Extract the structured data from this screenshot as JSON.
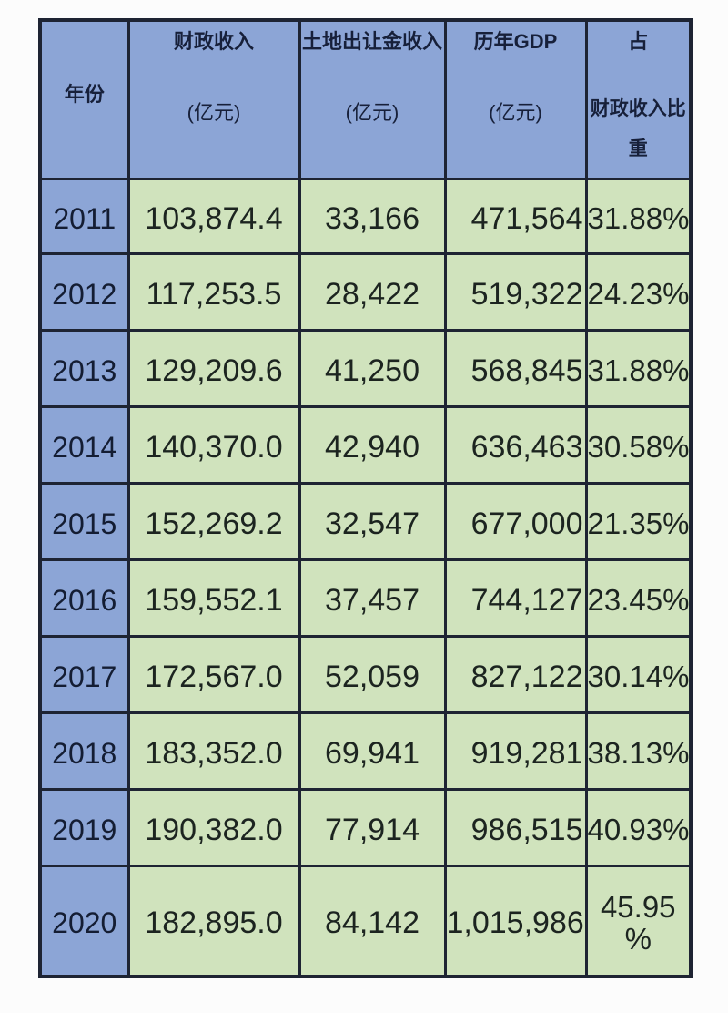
{
  "page": {
    "background": "#fcfcfc"
  },
  "colors": {
    "header_blue": "#8ca5d6",
    "cell_green": "#d0e3bd",
    "border_dark": "#1e2433"
  },
  "table": {
    "header": {
      "year": "年份",
      "fiscal_title": "财政收入",
      "fiscal_unit": "(亿元)",
      "land_title": "土地出让金收入",
      "land_unit": "(亿元)",
      "gdp_title_prefix": "历年",
      "gdp_title_bold": "GDP",
      "gdp_unit": "(亿元)",
      "ratio_line1": "占",
      "ratio_line2": "财政收入比重"
    },
    "rows": [
      {
        "year": "2011",
        "fiscal": "103,874.4",
        "land": "33,166",
        "gdp": "471,564",
        "ratio": "31.88%"
      },
      {
        "year": "2012",
        "fiscal": "117,253.5",
        "land": "28,422",
        "gdp": "519,322",
        "ratio": "24.23%"
      },
      {
        "year": "2013",
        "fiscal": "129,209.6",
        "land": "41,250",
        "gdp": "568,845",
        "ratio": "31.88%"
      },
      {
        "year": "2014",
        "fiscal": "140,370.0",
        "land": "42,940",
        "gdp": "636,463",
        "ratio": "30.58%"
      },
      {
        "year": "2015",
        "fiscal": "152,269.2",
        "land": "32,547",
        "gdp": "677,000",
        "ratio": "21.35%"
      },
      {
        "year": "2016",
        "fiscal": "159,552.1",
        "land": "37,457",
        "gdp": "744,127",
        "ratio": "23.45%"
      },
      {
        "year": "2017",
        "fiscal": "172,567.0",
        "land": "52,059",
        "gdp": "827,122",
        "ratio": "30.14%"
      },
      {
        "year": "2018",
        "fiscal": "183,352.0",
        "land": "69,941",
        "gdp": "919,281",
        "ratio": "38.13%"
      },
      {
        "year": "2019",
        "fiscal": "190,382.0",
        "land": "77,914",
        "gdp": "986,515",
        "ratio": "40.93%"
      },
      {
        "year": "2020",
        "fiscal": "182,895.0",
        "land": "84,142",
        "gdp": "1,015,986",
        "ratio": "45.95 %"
      }
    ]
  },
  "chart_data": {
    "type": "table",
    "title": "",
    "columns": [
      "年份",
      "财政收入(亿元)",
      "土地出让金收入(亿元)",
      "历年GDP(亿元)",
      "占财政收入比重"
    ],
    "years": [
      2011,
      2012,
      2013,
      2014,
      2015,
      2016,
      2017,
      2018,
      2019,
      2020
    ],
    "series": [
      {
        "name": "财政收入(亿元)",
        "values": [
          103874.4,
          117253.5,
          129209.6,
          140370.0,
          152269.2,
          159552.1,
          172567.0,
          183352.0,
          190382.0,
          182895.0
        ]
      },
      {
        "name": "土地出让金收入(亿元)",
        "values": [
          33166,
          28422,
          41250,
          42940,
          32547,
          37457,
          52059,
          69941,
          77914,
          84142
        ]
      },
      {
        "name": "历年GDP(亿元)",
        "values": [
          471564,
          519322,
          568845,
          636463,
          677000,
          744127,
          827122,
          919281,
          986515,
          1015986
        ]
      },
      {
        "name": "占财政收入比重(%)",
        "values": [
          31.88,
          24.23,
          31.88,
          30.58,
          21.35,
          23.45,
          30.14,
          38.13,
          40.93,
          45.95
        ]
      }
    ]
  }
}
